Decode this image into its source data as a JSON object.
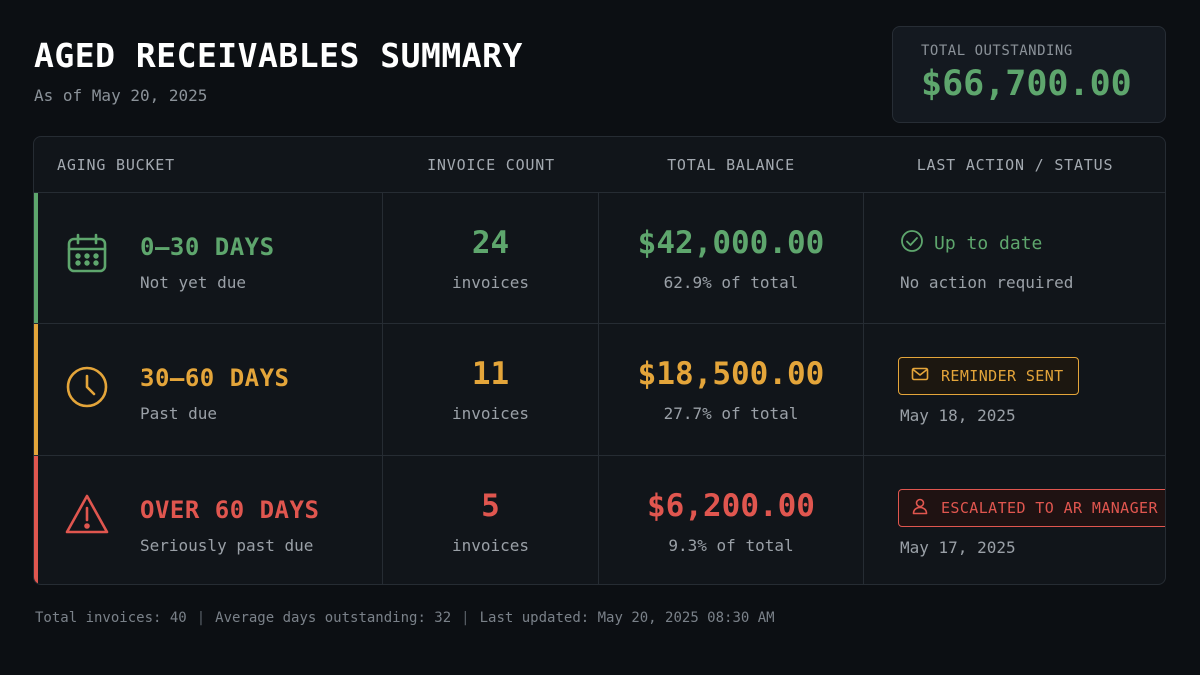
{
  "header": {
    "title": "AGED RECEIVABLES SUMMARY",
    "subtitle": "As of May 20, 2025"
  },
  "total_card": {
    "label": "TOTAL OUTSTANDING",
    "value": "$66,700.00"
  },
  "table": {
    "columns": [
      "AGING BUCKET",
      "INVOICE COUNT",
      "TOTAL BALANCE",
      "LAST ACTION / STATUS"
    ],
    "rows": [
      {
        "icon": "calendar-icon",
        "color": "#5ea66d",
        "bucket": "0–30 DAYS",
        "description": "Not yet due",
        "count": "24",
        "count_unit": "invoices",
        "balance": "$42,000.00",
        "percent": "62.9% of total",
        "status_icon": "check-circle-icon",
        "status": "Up to date",
        "status_detail": "No action required"
      },
      {
        "icon": "clock-icon",
        "color": "#e4a53a",
        "bucket": "30–60 DAYS",
        "description": "Past due",
        "count": "11",
        "count_unit": "invoices",
        "balance": "$18,500.00",
        "percent": "27.7% of total",
        "status_icon": "envelope-icon",
        "status": "REMINDER SENT",
        "status_detail": "May 18, 2025"
      },
      {
        "icon": "warning-triangle-icon",
        "color": "#e0564f",
        "bucket": "OVER 60 DAYS",
        "description": "Seriously past due",
        "count": "5",
        "count_unit": "invoices",
        "balance": "$6,200.00",
        "percent": "9.3% of total",
        "status_icon": "user-icon",
        "status": "ESCALATED TO AR MANAGER",
        "status_detail": "May 17, 2025"
      }
    ]
  },
  "footer": {
    "total_invoices": "Total invoices: 40",
    "avg_days": "Average days outstanding: 32",
    "last_updated": "Last updated: May 20, 2025 08:30 AM"
  }
}
